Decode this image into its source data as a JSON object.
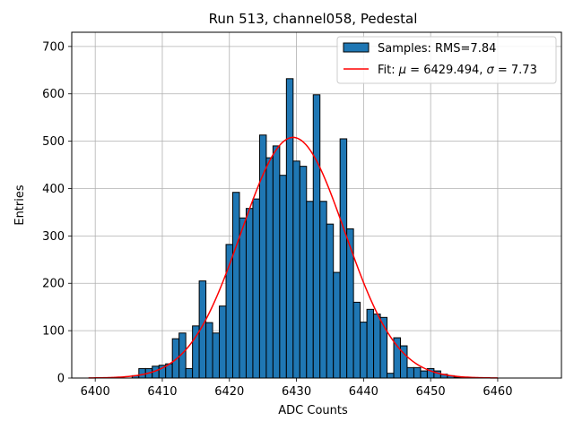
{
  "chart_data": {
    "type": "bar",
    "title": "Run 513, channel058, Pedestal",
    "xlabel": "ADC Counts",
    "ylabel": "Entries",
    "xlim": [
      6396.5,
      6469.5
    ],
    "ylim": [
      0,
      730
    ],
    "xticks": [
      6400,
      6410,
      6420,
      6430,
      6440,
      6450,
      6460
    ],
    "yticks": [
      0,
      100,
      200,
      300,
      400,
      500,
      600,
      700
    ],
    "grid": true,
    "legend_position": "top-right",
    "bin_width": 1,
    "series": [
      {
        "name": "Samples: RMS=7.84",
        "kind": "histogram",
        "color": "#1f77b4",
        "edgecolor": "#000000",
        "bin_centers": [
          6406,
          6407,
          6408,
          6409,
          6410,
          6411,
          6412,
          6413,
          6414,
          6415,
          6416,
          6417,
          6418,
          6419,
          6420,
          6421,
          6422,
          6423,
          6424,
          6425,
          6426,
          6427,
          6428,
          6429,
          6430,
          6431,
          6432,
          6433,
          6434,
          6435,
          6436,
          6437,
          6438,
          6439,
          6440,
          6441,
          6442,
          6443,
          6444,
          6445,
          6446,
          6447,
          6448,
          6449,
          6450,
          6451,
          6452,
          6453,
          6454,
          6455,
          6456,
          6457,
          6458
        ],
        "values": [
          5,
          20,
          20,
          25,
          27,
          30,
          83,
          95,
          20,
          110,
          205,
          117,
          95,
          152,
          282,
          392,
          338,
          358,
          378,
          513,
          465,
          490,
          428,
          632,
          458,
          447,
          373,
          598,
          373,
          325,
          223,
          505,
          315,
          160,
          118,
          145,
          135,
          128,
          10,
          85,
          68,
          22,
          22,
          15,
          20,
          15,
          8,
          5,
          2,
          1,
          1,
          1,
          0
        ]
      },
      {
        "name": "Fit: μ = 6429.494, σ = 7.73",
        "kind": "gaussian",
        "color": "#ff0000",
        "mu": 6429.494,
        "sigma": 7.73,
        "amplitude": 508,
        "x_range": [
          6399,
          6460
        ]
      }
    ]
  },
  "legend": {
    "samples_label": "Samples: RMS=7.84",
    "fit_label_prefix": "Fit: ",
    "fit_mu_symbol": "μ",
    "fit_mu_value": " = 6429.494, ",
    "fit_sigma_symbol": "σ",
    "fit_sigma_value": " = 7.73"
  }
}
